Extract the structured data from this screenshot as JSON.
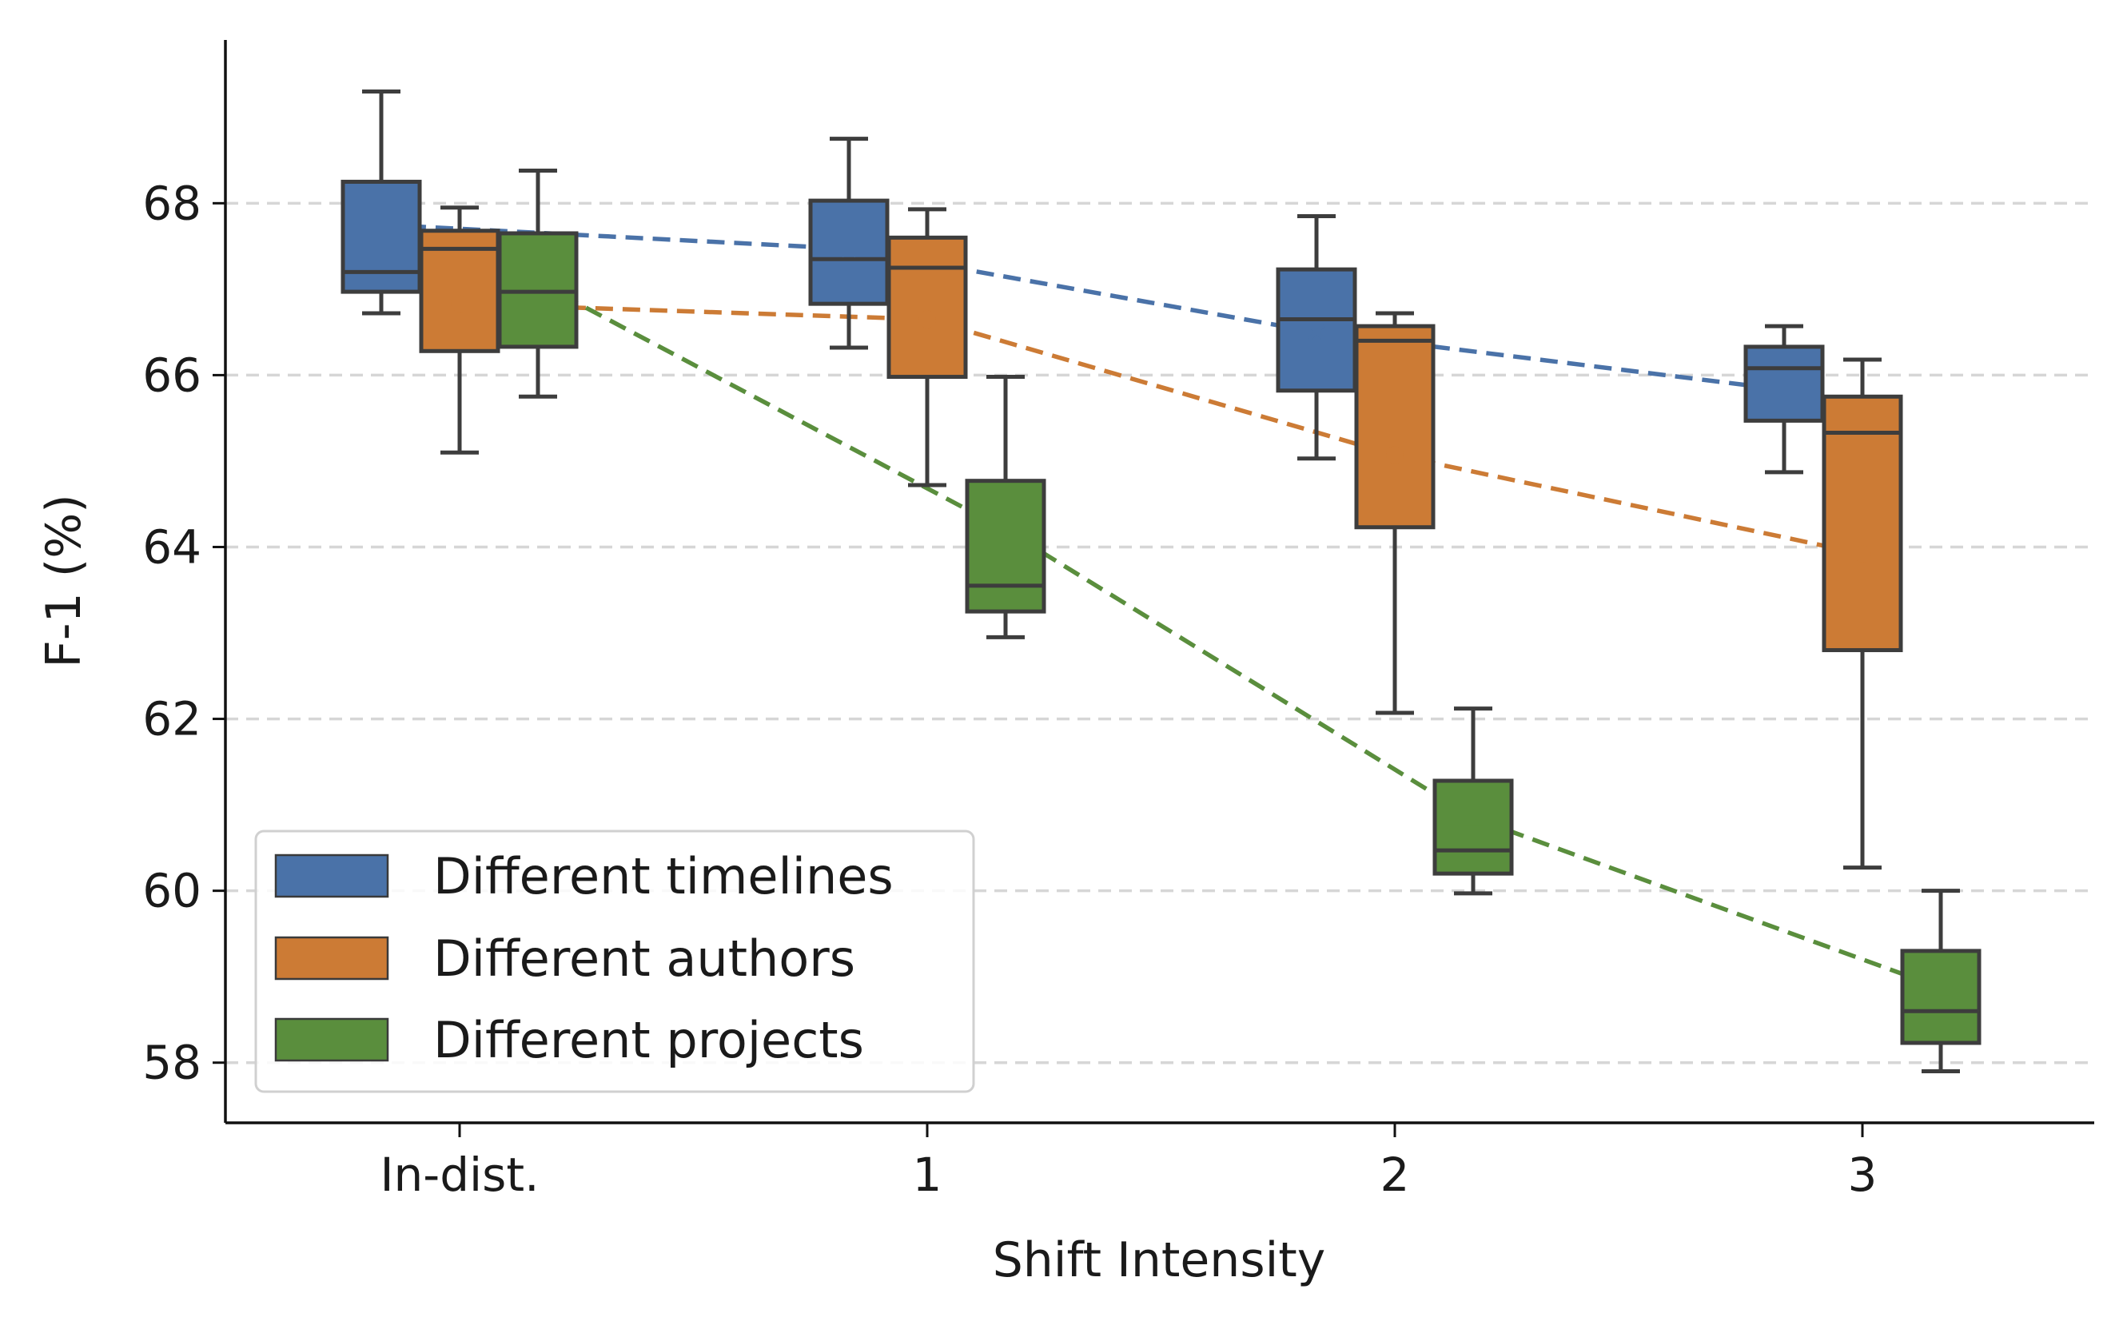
{
  "chart_data": {
    "type": "box",
    "xlabel": "Shift Intensity",
    "ylabel": "F-1 (%)",
    "categories": [
      "In-dist.",
      "1",
      "2",
      "3"
    ],
    "ylim": [
      57.3,
      69.9
    ],
    "yticks": [
      58,
      60,
      62,
      64,
      66,
      68
    ],
    "grid": "horizontal-dashed",
    "legend_position": "lower-left",
    "series": [
      {
        "name": "Different timelines",
        "color": "#4a72a8",
        "mean_marker": "x",
        "boxes": [
          {
            "whislo": 66.72,
            "q1": 66.97,
            "med": 67.2,
            "q3": 68.25,
            "whishi": 69.3
          },
          {
            "whislo": 66.32,
            "q1": 66.83,
            "med": 67.35,
            "q3": 68.03,
            "whishi": 68.75
          },
          {
            "whislo": 65.03,
            "q1": 65.82,
            "med": 66.65,
            "q3": 67.23,
            "whishi": 67.85
          },
          {
            "whislo": 64.87,
            "q1": 65.47,
            "med": 66.08,
            "q3": 66.33,
            "whishi": 66.57
          }
        ],
        "means": [
          67.75,
          67.47,
          66.5,
          65.83
        ]
      },
      {
        "name": "Different authors",
        "color": "#cc7b35",
        "mean_marker": "o",
        "boxes": [
          {
            "whislo": 65.1,
            "q1": 66.28,
            "med": 67.47,
            "q3": 67.68,
            "whishi": 67.95
          },
          {
            "whislo": 64.72,
            "q1": 65.98,
            "med": 67.25,
            "q3": 67.6,
            "whishi": 67.93
          },
          {
            "whislo": 62.07,
            "q1": 64.23,
            "med": 66.4,
            "q3": 66.57,
            "whishi": 66.72
          },
          {
            "whislo": 60.27,
            "q1": 62.8,
            "med": 65.33,
            "q3": 65.75,
            "whishi": 66.18
          }
        ],
        "means": [
          66.83,
          66.65,
          65.07,
          63.92
        ]
      },
      {
        "name": "Different projects",
        "color": "#5a8e3d",
        "mean_marker": "^",
        "boxes": [
          {
            "whislo": 65.75,
            "q1": 66.33,
            "med": 66.97,
            "q3": 67.65,
            "whishi": 68.38
          },
          {
            "whislo": 62.95,
            "q1": 63.25,
            "med": 63.55,
            "q3": 64.77,
            "whishi": 65.98
          },
          {
            "whislo": 59.97,
            "q1": 60.2,
            "med": 60.47,
            "q3": 61.28,
            "whishi": 62.12
          },
          {
            "whislo": 57.9,
            "q1": 58.23,
            "med": 58.6,
            "q3": 59.3,
            "whishi": 60.0
          }
        ],
        "means": [
          67.08,
          64.2,
          60.85,
          58.87
        ]
      }
    ]
  }
}
